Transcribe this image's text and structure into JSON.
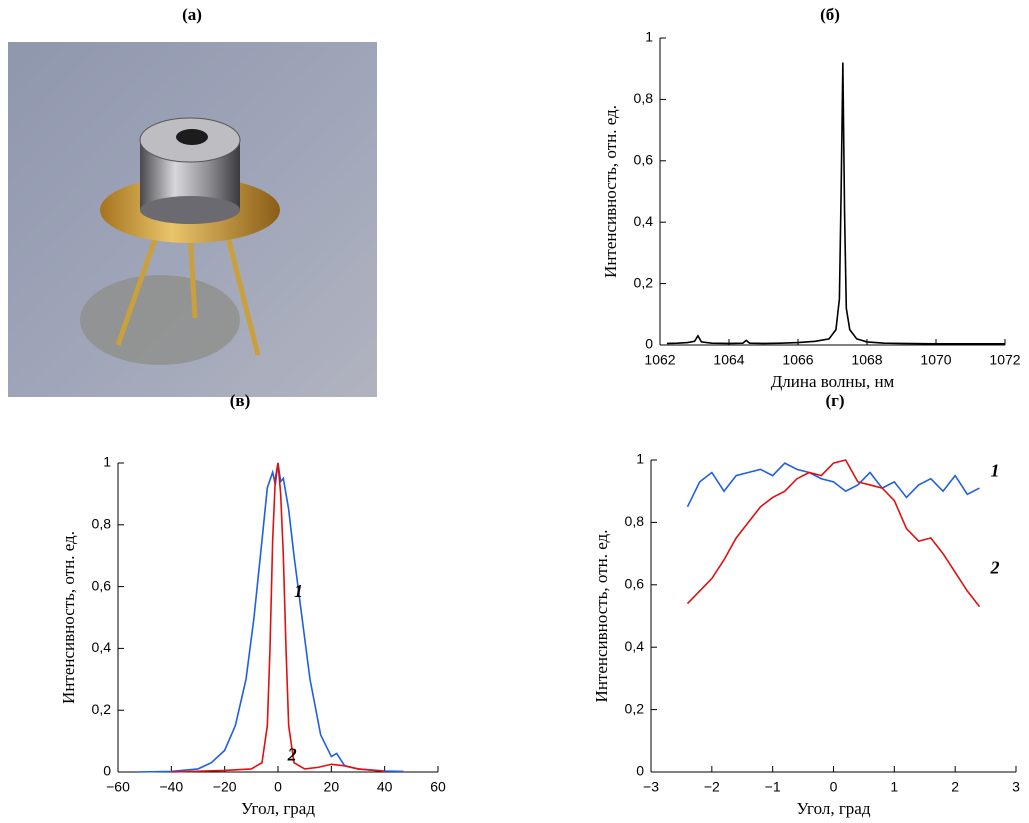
{
  "photo_panel": {
    "title": "(а)"
  },
  "chart_data": [
    {
      "type": "line",
      "title": "(б)",
      "x_label": "Длина волны, нм",
      "y_label": "Интенсивность, отн. ед.",
      "xlim": [
        1062,
        1072
      ],
      "xticks": [
        1062,
        1064,
        1066,
        1068,
        1070,
        1072
      ],
      "ylim": [
        0,
        1
      ],
      "yticks": [
        0,
        {
          "value": 0.2,
          "label": "0,2"
        },
        {
          "value": 0.4,
          "label": "0,4"
        },
        {
          "value": 0.6,
          "label": "0,6"
        },
        {
          "value": 0.8,
          "label": "0,8"
        },
        1
      ],
      "series": [
        {
          "color": "#000000",
          "x": [
            1062.2,
            1062.5,
            1062.8,
            1063.0,
            1063.1,
            1063.2,
            1063.5,
            1064.0,
            1064.4,
            1064.5,
            1064.6,
            1065.0,
            1065.5,
            1066.0,
            1066.5,
            1066.9,
            1067.1,
            1067.2,
            1067.25,
            1067.3,
            1067.35,
            1067.4,
            1067.5,
            1067.7,
            1068.0,
            1068.5,
            1069,
            1070,
            1071,
            1072
          ],
          "values": [
            0.005,
            0.006,
            0.008,
            0.012,
            0.03,
            0.01,
            0.006,
            0.005,
            0.006,
            0.015,
            0.006,
            0.005,
            0.006,
            0.008,
            0.012,
            0.02,
            0.05,
            0.15,
            0.5,
            0.92,
            0.43,
            0.12,
            0.05,
            0.02,
            0.01,
            0.006,
            0.005,
            0.004,
            0.004,
            0.004
          ]
        }
      ]
    },
    {
      "type": "line",
      "title": "(в)",
      "x_label": "Угол, град",
      "y_label": "Интенсивность, отн. ед.",
      "xlim": [
        -60,
        60
      ],
      "xticks": [
        {
          "value": -60,
          "label": "−60"
        },
        {
          "value": -40,
          "label": "−40"
        },
        {
          "value": -20,
          "label": "−20"
        },
        0,
        20,
        40,
        60
      ],
      "ylim": [
        0,
        1
      ],
      "yticks": [
        0,
        {
          "value": 0.2,
          "label": "0,2"
        },
        {
          "value": 0.4,
          "label": "0,4"
        },
        {
          "value": 0.6,
          "label": "0,6"
        },
        {
          "value": 0.8,
          "label": "0,8"
        },
        1
      ],
      "series": [
        {
          "name": "1",
          "color": "#1f5fe0",
          "x": [
            -53,
            -40,
            -30,
            -25,
            -20,
            -16,
            -12,
            -9,
            -6,
            -4,
            -2,
            -1,
            0,
            1,
            2,
            4,
            6,
            9,
            12,
            16,
            20,
            22,
            25,
            30,
            40,
            47
          ],
          "values": [
            0,
            0.002,
            0.01,
            0.03,
            0.07,
            0.15,
            0.3,
            0.5,
            0.75,
            0.92,
            0.97,
            0.93,
            1,
            0.94,
            0.95,
            0.85,
            0.7,
            0.5,
            0.3,
            0.12,
            0.05,
            0.06,
            0.02,
            0.01,
            0.003,
            0.002
          ]
        },
        {
          "name": "2",
          "color": "#e01010",
          "x": [
            -40,
            -20,
            -10,
            -6,
            -4,
            -3,
            -2,
            -1,
            0,
            1,
            2,
            3,
            4,
            6,
            10,
            15,
            20,
            25,
            30,
            40
          ],
          "values": [
            0,
            0.005,
            0.01,
            0.03,
            0.15,
            0.4,
            0.75,
            0.95,
            1,
            0.9,
            0.7,
            0.4,
            0.15,
            0.03,
            0.01,
            0.015,
            0.025,
            0.02,
            0.01,
            0.002
          ]
        }
      ]
    },
    {
      "type": "line",
      "title": "(г)",
      "x_label": "Угол, град",
      "y_label": "Интенсивность, отн. ед.",
      "xlim": [
        -3,
        3
      ],
      "xticks": [
        {
          "value": -3,
          "label": "−3"
        },
        {
          "value": -2,
          "label": "−2"
        },
        {
          "value": -1,
          "label": "−1"
        },
        0,
        1,
        2,
        3
      ],
      "ylim": [
        0,
        1
      ],
      "yticks": [
        0,
        {
          "value": 0.2,
          "label": "0,2"
        },
        {
          "value": 0.4,
          "label": "0,4"
        },
        {
          "value": 0.6,
          "label": "0,6"
        },
        {
          "value": 0.8,
          "label": "0,8"
        },
        1
      ],
      "series": [
        {
          "name": "1",
          "color": "#1f5fe0",
          "x": [
            -2.4,
            -2.2,
            -2.0,
            -1.8,
            -1.6,
            -1.4,
            -1.2,
            -1.0,
            -0.8,
            -0.6,
            -0.4,
            -0.2,
            0,
            0.2,
            0.4,
            0.6,
            0.8,
            1.0,
            1.2,
            1.4,
            1.6,
            1.8,
            2.0,
            2.2,
            2.4
          ],
          "values": [
            0.85,
            0.93,
            0.96,
            0.9,
            0.95,
            0.96,
            0.97,
            0.95,
            0.99,
            0.97,
            0.96,
            0.94,
            0.93,
            0.9,
            0.92,
            0.96,
            0.91,
            0.93,
            0.88,
            0.92,
            0.94,
            0.9,
            0.95,
            0.89,
            0.91
          ]
        },
        {
          "name": "2",
          "color": "#e01010",
          "x": [
            -2.4,
            -2.2,
            -2.0,
            -1.8,
            -1.6,
            -1.4,
            -1.2,
            -1.0,
            -0.8,
            -0.6,
            -0.4,
            -0.2,
            0,
            0.2,
            0.4,
            0.6,
            0.8,
            1.0,
            1.2,
            1.4,
            1.6,
            1.8,
            2.0,
            2.2,
            2.4
          ],
          "values": [
            0.54,
            0.58,
            0.62,
            0.68,
            0.75,
            0.8,
            0.85,
            0.88,
            0.9,
            0.94,
            0.96,
            0.95,
            0.99,
            1.0,
            0.93,
            0.92,
            0.91,
            0.87,
            0.78,
            0.74,
            0.75,
            0.7,
            0.64,
            0.58,
            0.53
          ]
        }
      ]
    }
  ]
}
